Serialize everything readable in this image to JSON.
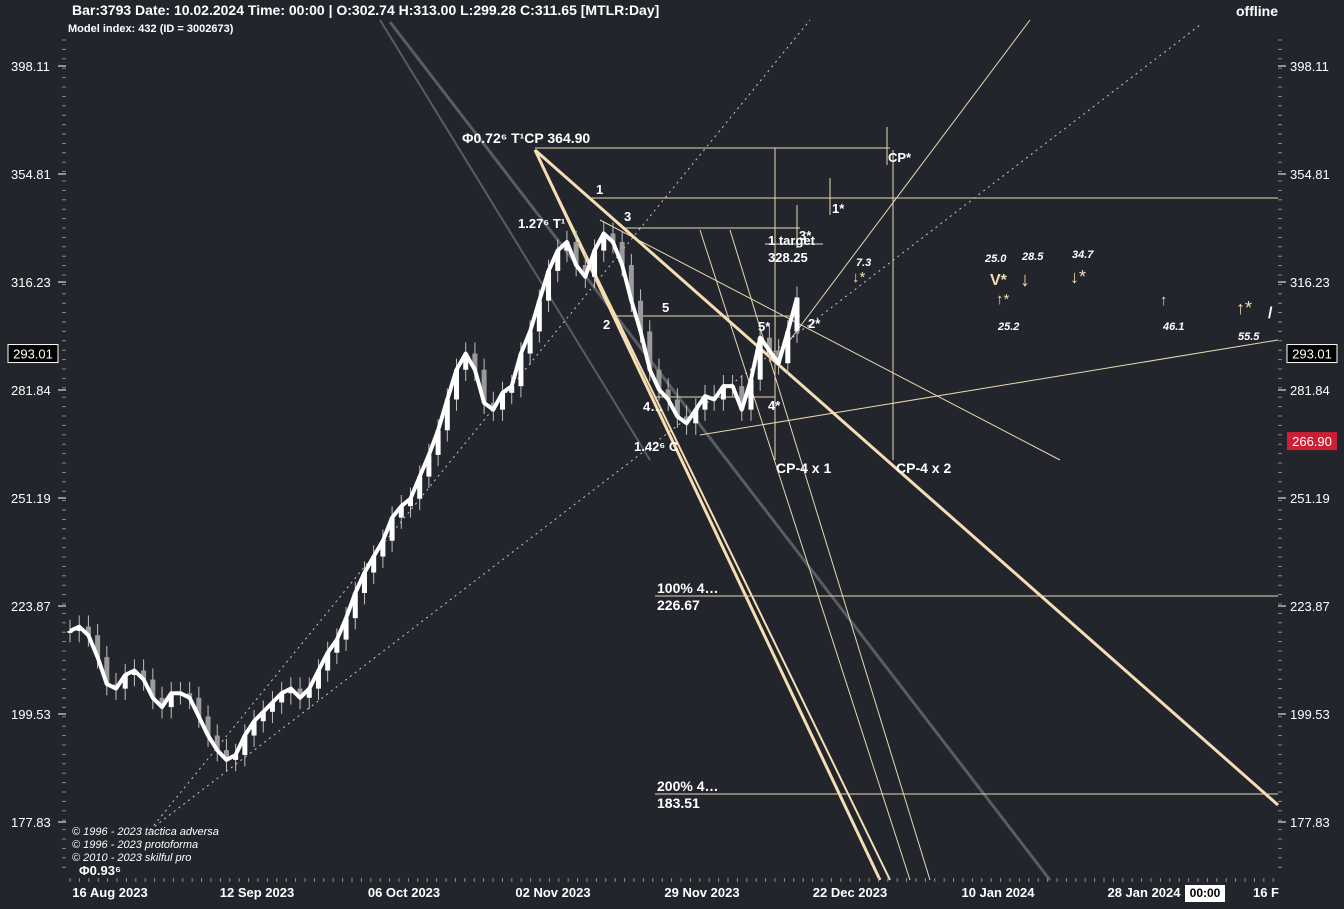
{
  "header": {
    "bar_info": "Bar:3793 Date: 10.02.2024 Time: 00:00 | O:302.74 H:313.00 L:299.28 C:311.65 [MTLR:Day]",
    "model_index": "Model index: 432  (ID = 3002673)",
    "status": "offline"
  },
  "copyright": [
    "© 1996 - 2023 tactica adversa",
    "© 1996 - 2023 protoforma",
    "© 2010 - 2023 skilful pro"
  ],
  "phi_bottom": "Φ0.93⁶",
  "time_box": "00:00",
  "colors": {
    "background": "#23252d",
    "candle": "#ffffff",
    "line_thick": "#f5deb3",
    "line_thin": "#e8d8b0",
    "trend_grey": "#5a5c63",
    "current_price_bg": "#cc1f36",
    "marker_price_bg": "#000000"
  },
  "chart_data": {
    "type": "line",
    "title": "",
    "xlabel": "",
    "ylabel": "",
    "ylim": [
      165,
      412
    ],
    "grid": false,
    "y_ticks": [
      398.11,
      354.81,
      316.23,
      281.84,
      251.19,
      223.87,
      199.53,
      177.83
    ],
    "y_tick_labels": [
      "398.11",
      "354.81",
      "316.23",
      "281.84",
      "251.19",
      "223.87",
      "199.53",
      "177.83"
    ],
    "x_tick_labels": [
      "16 Aug 2023",
      "12 Sep 2023",
      "06 Oct 2023",
      "02 Nov 2023",
      "29 Nov 2023",
      "22 Dec 2023",
      "10 Jan 2024",
      "28 Jan 2024",
      "16 F"
    ],
    "price_marker": "293.01",
    "current_price": "266.90",
    "series": [
      {
        "values": [
          218,
          219,
          217,
          212,
          206,
          205,
          208,
          209,
          207,
          203,
          201,
          204,
          204,
          203,
          199,
          195,
          192,
          190,
          191,
          195,
          198,
          200,
          202,
          204,
          205,
          203,
          205,
          209,
          213,
          216,
          221,
          227,
          232,
          236,
          240,
          246,
          249,
          251,
          257,
          263,
          270,
          279,
          288,
          293,
          288,
          278,
          276,
          281,
          283,
          293,
          300,
          310,
          320,
          327,
          330,
          322,
          318,
          327,
          333,
          330,
          322,
          310,
          300,
          288,
          282,
          279,
          274,
          272,
          276,
          280,
          279,
          283,
          283,
          276,
          285,
          298,
          294,
          290,
          300,
          311
        ]
      }
    ]
  },
  "annotations": {
    "top_point": "Φ0.72⁶ T¹CP  364.90",
    "wave_1": "1",
    "wave_2": "2",
    "wave_3": "3",
    "wave_4": "4…",
    "wave_5": "5",
    "wave_1_label": "1.27⁶ T¹",
    "c_label": "1.42⁶ C",
    "cp_star": "CP*",
    "one_star": "1*",
    "three_star": "3*",
    "one_target": "1 target",
    "target_value": "328.25",
    "five_star": "5*",
    "two_star": "2*",
    "four_star": "4*",
    "cp4x1": "CP-4 x 1",
    "cp4x2": "CP-4 x 2",
    "fib100": "100%  4…",
    "fib100_val": "226.67",
    "fib200": "200%  4…",
    "fib200_val": "183.51",
    "n73": "7.3",
    "down_star": "↓*",
    "n250": "25.0",
    "v_star": "V*",
    "n285": "28.5",
    "n347": "34.7",
    "up_star": "↑*",
    "n252": "25.2",
    "n461": "46.1",
    "n555": "55.5",
    "down_arrow": "↓",
    "up_arrow": "↑",
    "slash": "/"
  }
}
